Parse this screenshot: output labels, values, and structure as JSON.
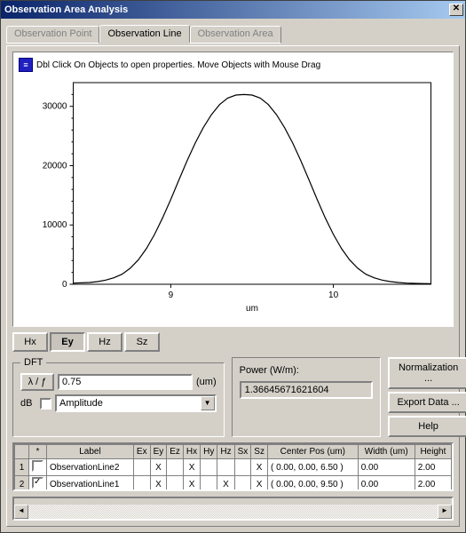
{
  "window": {
    "title": "Observation Area Analysis"
  },
  "tabs": {
    "items": [
      {
        "label": "Observation Point"
      },
      {
        "label": "Observation Line"
      },
      {
        "label": "Observation Area"
      }
    ],
    "active": 1
  },
  "chart": {
    "hint": "Dbl Click On Objects to open properties.  Move Objects with Mouse Drag",
    "type": "line",
    "xlabel": "um",
    "xlim": [
      8.4,
      10.6
    ],
    "xticks": [
      9,
      10
    ],
    "ylim": [
      0,
      34000
    ],
    "yticks": [
      0,
      10000,
      20000,
      30000
    ],
    "line_color": "#000000",
    "line_width": 1.2,
    "background_color": "#ffffff",
    "axis_color": "#000000",
    "grid_color": "#ffffff",
    "label_fontsize": 10,
    "tick_fontsize": 10,
    "series_x": [
      8.4,
      8.5,
      8.55,
      8.6,
      8.65,
      8.7,
      8.75,
      8.8,
      8.85,
      8.9,
      8.95,
      9.0,
      9.05,
      9.1,
      9.15,
      9.2,
      9.25,
      9.3,
      9.35,
      9.4,
      9.45,
      9.5,
      9.55,
      9.6,
      9.65,
      9.7,
      9.75,
      9.8,
      9.85,
      9.9,
      9.95,
      10.0,
      10.05,
      10.1,
      10.15,
      10.2,
      10.25,
      10.3,
      10.35,
      10.4,
      10.45,
      10.5,
      10.55,
      10.6
    ],
    "series_y": [
      200,
      300,
      450,
      700,
      1100,
      1700,
      2700,
      4100,
      6000,
      8400,
      11200,
      14300,
      17600,
      20800,
      23800,
      26400,
      28600,
      30300,
      31400,
      31900,
      32000,
      31900,
      31400,
      30300,
      28600,
      26400,
      23800,
      20800,
      17600,
      14300,
      11200,
      8400,
      6000,
      4100,
      2700,
      1700,
      1100,
      700,
      450,
      300,
      200,
      150,
      120,
      110
    ]
  },
  "channel_buttons": {
    "items": [
      "Hx",
      "Ey",
      "Hz",
      "Sz"
    ],
    "active": 1
  },
  "dft": {
    "legend": "DFT",
    "lambda_label": "λ / ƒ",
    "lambda_value": "0.75",
    "lambda_unit": "(um)",
    "db_label": "dB",
    "db_checked": false,
    "mode_value": "Amplitude"
  },
  "power": {
    "label": "Power (W/m):",
    "value": "1.36645671621604"
  },
  "buttons": {
    "normalization": "Normalization ...",
    "export": "Export Data ...",
    "help": "Help"
  },
  "table": {
    "columns": [
      "",
      "*",
      "Label",
      "Ex",
      "Ey",
      "Ez",
      "Hx",
      "Hy",
      "Hz",
      "Sx",
      "Sz",
      "Center Pos (um)",
      "Width (um)",
      "Height"
    ],
    "rows": [
      {
        "idx": "1",
        "sel": false,
        "label": "ObservationLine2",
        "Ex": "",
        "Ey": "X",
        "Ez": "",
        "Hx": "X",
        "Hy": "",
        "Hz": "",
        "Sx": "",
        "Sz": "X",
        "center": "( 0.00, 0.00, 6.50 )",
        "width": "0.00",
        "height": "2.00"
      },
      {
        "idx": "2",
        "sel": true,
        "label": "ObservationLine1",
        "Ex": "",
        "Ey": "X",
        "Ez": "",
        "Hx": "X",
        "Hy": "",
        "Hz": "X",
        "Sx": "",
        "Sz": "X",
        "center": "( 0.00, 0.00, 9.50 )",
        "width": "0.00",
        "height": "2.00"
      }
    ]
  },
  "colors": {
    "window_bg": "#d4d0c8",
    "titlebar_start": "#0a246a",
    "titlebar_end": "#a6caf0"
  }
}
